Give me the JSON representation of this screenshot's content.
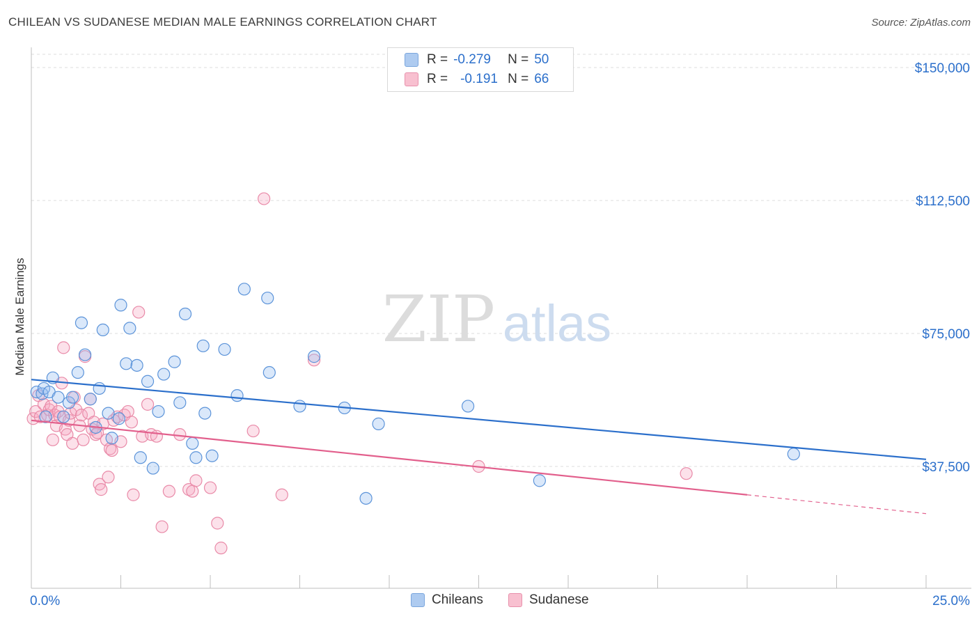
{
  "title": "CHILEAN VS SUDANESE MEDIAN MALE EARNINGS CORRELATION CHART",
  "source": "Source: ZipAtlas.com",
  "watermark": {
    "zip": "ZIP",
    "atlas": "atlas"
  },
  "legend": {
    "r_label": "R =",
    "n_label": "N =",
    "rows": [
      {
        "r": "-0.279",
        "n": "50",
        "color": "#aecbf0",
        "border": "#7aa6dd"
      },
      {
        "r": "-0.191",
        "n": "66",
        "color": "#f8c0d0",
        "border": "#e890ab"
      }
    ]
  },
  "bottom_legend": {
    "chileans": "Chileans",
    "sudanese": "Sudanese"
  },
  "chart_data": {
    "type": "scatter",
    "title": "CHILEAN VS SUDANESE MEDIAN MALE EARNINGS CORRELATION CHART",
    "ylabel": "Median Male Earnings",
    "xlabel": "",
    "xlim": [
      0,
      25
    ],
    "ylim": [
      5000,
      155000
    ],
    "x_tick_labels": [
      "0.0%",
      "25.0%"
    ],
    "y_ticks": [
      37500,
      75000,
      112500,
      150000
    ],
    "y_tick_labels": [
      "$37,500",
      "$75,000",
      "$112,500",
      "$150,000"
    ],
    "grid": "horizontal dashed",
    "series": [
      {
        "name": "Chileans",
        "color": "#5b93d9",
        "fill": "rgba(150,190,240,0.35)",
        "trend": {
          "x": [
            0,
            25
          ],
          "y": [
            62000,
            39500
          ],
          "color": "#2b6fcb"
        },
        "points": [
          [
            0.15,
            58500
          ],
          [
            0.3,
            58000
          ],
          [
            0.35,
            59500
          ],
          [
            0.4,
            51500
          ],
          [
            0.5,
            58500
          ],
          [
            0.6,
            62500
          ],
          [
            0.75,
            57000
          ],
          [
            0.9,
            51500
          ],
          [
            1.05,
            55500
          ],
          [
            1.15,
            57000
          ],
          [
            1.3,
            64000
          ],
          [
            1.4,
            78000
          ],
          [
            1.5,
            69000
          ],
          [
            1.65,
            56500
          ],
          [
            1.8,
            48500
          ],
          [
            1.9,
            59500
          ],
          [
            2.0,
            76000
          ],
          [
            2.15,
            52500
          ],
          [
            2.25,
            45500
          ],
          [
            2.45,
            51000
          ],
          [
            2.5,
            83000
          ],
          [
            2.65,
            66500
          ],
          [
            2.75,
            76500
          ],
          [
            2.95,
            66000
          ],
          [
            3.05,
            40000
          ],
          [
            3.25,
            61500
          ],
          [
            3.4,
            37000
          ],
          [
            3.55,
            53000
          ],
          [
            3.7,
            63500
          ],
          [
            4.0,
            67000
          ],
          [
            4.15,
            55500
          ],
          [
            4.3,
            80500
          ],
          [
            4.5,
            44000
          ],
          [
            4.6,
            40000
          ],
          [
            4.8,
            71500
          ],
          [
            4.85,
            52500
          ],
          [
            5.05,
            40500
          ],
          [
            5.4,
            70500
          ],
          [
            5.75,
            57500
          ],
          [
            5.95,
            87500
          ],
          [
            6.6,
            85000
          ],
          [
            6.65,
            64000
          ],
          [
            7.5,
            54500
          ],
          [
            7.9,
            68500
          ],
          [
            8.75,
            54000
          ],
          [
            9.35,
            28500
          ],
          [
            9.7,
            49500
          ],
          [
            12.2,
            54500
          ],
          [
            14.2,
            33500
          ],
          [
            21.3,
            41000
          ]
        ]
      },
      {
        "name": "Sudanese",
        "color": "#e98aa8",
        "fill": "rgba(245,170,195,0.35)",
        "trend": {
          "x": [
            0,
            20
          ],
          "y": [
            50500,
            29500
          ],
          "color": "#e25f8c",
          "dashed_to": {
            "x": 25,
            "y": 24200
          }
        },
        "points": [
          [
            0.05,
            51000
          ],
          [
            0.12,
            53000
          ],
          [
            0.2,
            57500
          ],
          [
            0.25,
            51500
          ],
          [
            0.35,
            55000
          ],
          [
            0.45,
            52000
          ],
          [
            0.5,
            53500
          ],
          [
            0.55,
            54500
          ],
          [
            0.6,
            45000
          ],
          [
            0.65,
            52000
          ],
          [
            0.7,
            49000
          ],
          [
            0.75,
            53000
          ],
          [
            0.8,
            51500
          ],
          [
            0.85,
            61000
          ],
          [
            0.9,
            71000
          ],
          [
            0.95,
            48000
          ],
          [
            1.0,
            46500
          ],
          [
            1.05,
            50500
          ],
          [
            1.1,
            52500
          ],
          [
            1.15,
            44000
          ],
          [
            1.2,
            57000
          ],
          [
            1.25,
            53500
          ],
          [
            1.35,
            49000
          ],
          [
            1.4,
            52000
          ],
          [
            1.45,
            45000
          ],
          [
            1.5,
            68500
          ],
          [
            1.6,
            52500
          ],
          [
            1.65,
            56500
          ],
          [
            1.7,
            48000
          ],
          [
            1.75,
            50000
          ],
          [
            1.8,
            46500
          ],
          [
            1.85,
            47000
          ],
          [
            1.9,
            32500
          ],
          [
            1.95,
            31000
          ],
          [
            2.0,
            49500
          ],
          [
            2.1,
            45000
          ],
          [
            2.15,
            34500
          ],
          [
            2.2,
            42500
          ],
          [
            2.25,
            42000
          ],
          [
            2.3,
            50500
          ],
          [
            2.4,
            51500
          ],
          [
            2.5,
            44500
          ],
          [
            2.6,
            52000
          ],
          [
            2.7,
            53000
          ],
          [
            2.8,
            50000
          ],
          [
            2.85,
            29500
          ],
          [
            3.0,
            81000
          ],
          [
            3.1,
            46000
          ],
          [
            3.25,
            55000
          ],
          [
            3.35,
            46500
          ],
          [
            3.5,
            46000
          ],
          [
            3.65,
            20500
          ],
          [
            3.85,
            30500
          ],
          [
            4.15,
            46500
          ],
          [
            4.4,
            31000
          ],
          [
            4.5,
            30500
          ],
          [
            4.6,
            33500
          ],
          [
            5.0,
            31500
          ],
          [
            5.2,
            21500
          ],
          [
            5.3,
            14500
          ],
          [
            6.2,
            47500
          ],
          [
            6.5,
            113000
          ],
          [
            7.0,
            29500
          ],
          [
            7.9,
            67500
          ],
          [
            12.5,
            37500
          ],
          [
            18.3,
            35500
          ]
        ]
      }
    ]
  }
}
